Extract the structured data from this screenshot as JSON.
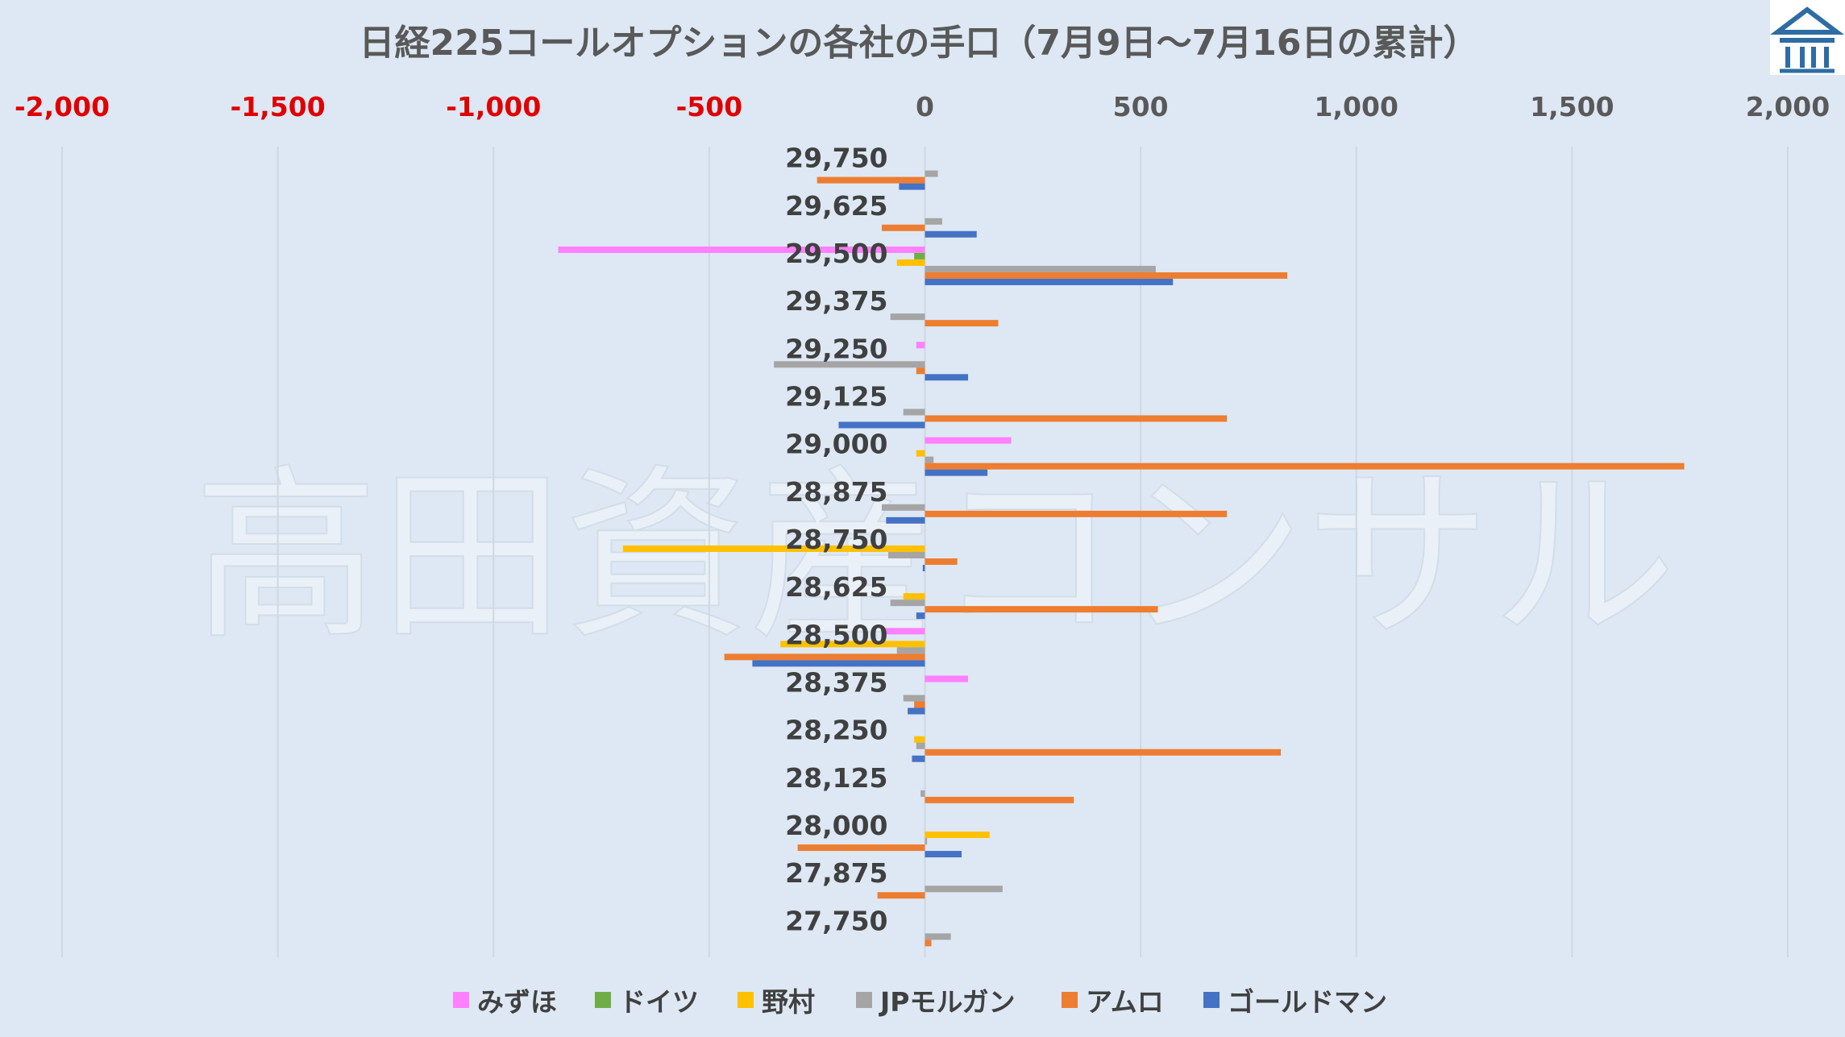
{
  "watermark": "高田資産コンサル",
  "logo_icon": "pillar-building-logo-icon",
  "colors": {
    "background": "#dde8f4",
    "grid": "#cfd8e2",
    "negative_tick": "#e00000",
    "positive_tick": "#595959",
    "logo": "#2e6da4"
  },
  "chart_data": {
    "type": "bar",
    "orientation": "horizontal",
    "title": "日経225コールオプションの各社の手口（7月9日～7月16日の累計）",
    "xlim": [
      -2000,
      2000
    ],
    "xticks": [
      -2000,
      -1500,
      -1000,
      -500,
      0,
      500,
      1000,
      1500,
      2000
    ],
    "xtick_labels": [
      "-2,000",
      "-1,500",
      "-1,000",
      "-500",
      "0",
      "500",
      "1,000",
      "1,500",
      "2,000"
    ],
    "grid": true,
    "legend_position": "bottom",
    "categories": [
      "29,750",
      "29,625",
      "29,500",
      "29,375",
      "29,250",
      "29,125",
      "29,000",
      "28,875",
      "28,750",
      "28,625",
      "28,500",
      "28,375",
      "28,250",
      "28,125",
      "28,000",
      "27,875",
      "27,750"
    ],
    "series": [
      {
        "name": "みずほ",
        "color": "#ff80ff",
        "values": [
          0,
          0,
          -850,
          0,
          -20,
          0,
          200,
          0,
          0,
          0,
          -100,
          100,
          0,
          0,
          0,
          0,
          0
        ]
      },
      {
        "name": "ドイツ",
        "color": "#70ad47",
        "values": [
          0,
          0,
          -25,
          0,
          0,
          0,
          0,
          0,
          0,
          0,
          0,
          0,
          0,
          0,
          0,
          0,
          0
        ]
      },
      {
        "name": "野村",
        "color": "#ffc000",
        "values": [
          0,
          0,
          -65,
          0,
          0,
          0,
          -20,
          0,
          -700,
          -50,
          -335,
          0,
          -25,
          0,
          150,
          0,
          0
        ]
      },
      {
        "name": "JPモルガン",
        "color": "#a5a5a5",
        "values": [
          30,
          40,
          535,
          -80,
          -350,
          -50,
          20,
          -100,
          -85,
          -80,
          -65,
          -50,
          -20,
          -10,
          5,
          180,
          60
        ]
      },
      {
        "name": "アムロ",
        "color": "#ed7d31",
        "values": [
          -250,
          -100,
          840,
          170,
          -20,
          700,
          1760,
          700,
          75,
          540,
          -465,
          -25,
          825,
          345,
          -295,
          -110,
          15
        ]
      },
      {
        "name": "ゴールドマン",
        "color": "#4472c4",
        "values": [
          -60,
          120,
          575,
          0,
          100,
          -200,
          145,
          -90,
          -5,
          -20,
          -400,
          -40,
          -30,
          0,
          85,
          0,
          0
        ]
      }
    ]
  }
}
